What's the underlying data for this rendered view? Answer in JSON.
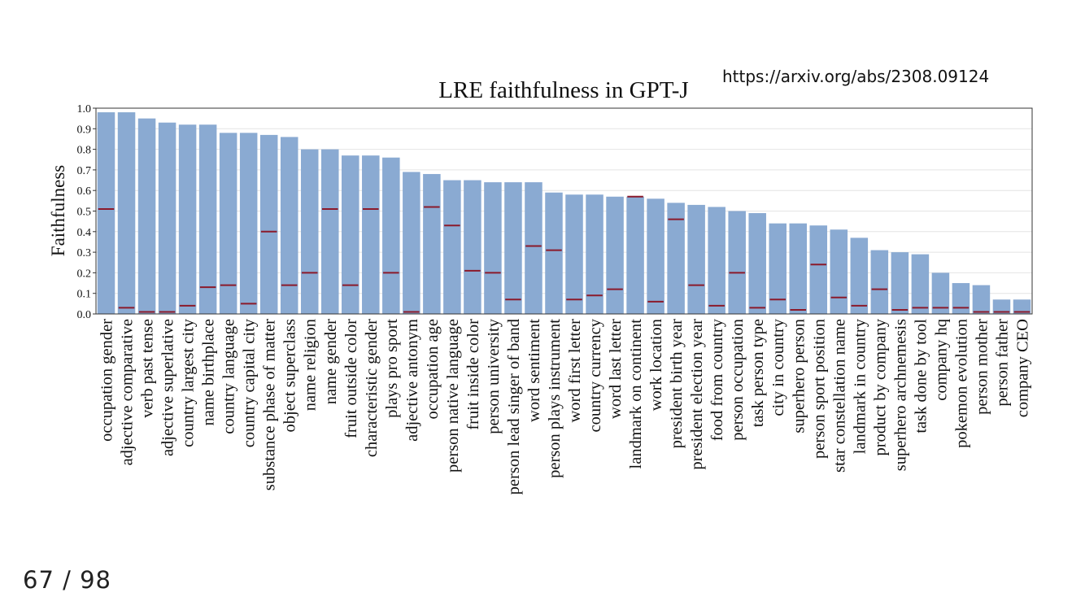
{
  "slide": {
    "source_url": "https://arxiv.org/abs/2308.09124",
    "page_counter": "67 / 98"
  },
  "chart_data": {
    "type": "bar",
    "title": "LRE faithfulness in GPT-J",
    "ylabel": "Faithfulness",
    "xlabel": "",
    "ylim": [
      0,
      1.0
    ],
    "yticks": [
      "0.0",
      "0.1",
      "0.2",
      "0.3",
      "0.4",
      "0.5",
      "0.6",
      "0.7",
      "0.8",
      "0.9",
      "1.0"
    ],
    "grid": true,
    "bar_color": "#8aaad2",
    "baseline_marker_color": "#8b1a2b",
    "categories": [
      "occupation gender",
      "adjective comparative",
      "verb past tense",
      "adjective superlative",
      "country largest city",
      "name birthplace",
      "country language",
      "country capital city",
      "substance phase of matter",
      "object superclass",
      "name religion",
      "name gender",
      "fruit outside color",
      "characteristic gender",
      "plays pro sport",
      "adjective antonym",
      "occupation age",
      "person native language",
      "fruit inside color",
      "person university",
      "person lead singer of band",
      "word sentiment",
      "person plays instrument",
      "word first letter",
      "country currency",
      "word last letter",
      "landmark on continent",
      "work location",
      "president birth year",
      "president election year",
      "food from country",
      "person occupation",
      "task person type",
      "city in country",
      "superhero person",
      "person sport position",
      "star constellation name",
      "landmark in country",
      "product by company",
      "superhero archnemesis",
      "task done by tool",
      "company hq",
      "pokemon evolution",
      "person mother",
      "person father",
      "company CEO"
    ],
    "values": [
      0.98,
      0.98,
      0.95,
      0.93,
      0.92,
      0.92,
      0.88,
      0.88,
      0.87,
      0.86,
      0.8,
      0.8,
      0.77,
      0.77,
      0.76,
      0.69,
      0.68,
      0.65,
      0.65,
      0.64,
      0.64,
      0.64,
      0.59,
      0.58,
      0.58,
      0.57,
      0.57,
      0.56,
      0.54,
      0.53,
      0.52,
      0.5,
      0.49,
      0.44,
      0.44,
      0.43,
      0.41,
      0.37,
      0.31,
      0.3,
      0.29,
      0.2,
      0.15,
      0.14,
      0.07,
      0.07
    ],
    "baseline": [
      0.51,
      0.03,
      0.01,
      0.01,
      0.04,
      0.13,
      0.14,
      0.05,
      0.4,
      0.14,
      0.2,
      0.51,
      0.14,
      0.51,
      0.2,
      0.01,
      0.52,
      0.43,
      0.21,
      0.2,
      0.07,
      0.33,
      0.31,
      0.07,
      0.09,
      0.12,
      0.57,
      0.06,
      0.46,
      0.14,
      0.04,
      0.2,
      0.03,
      0.07,
      0.02,
      0.24,
      0.08,
      0.04,
      0.12,
      0.02,
      0.03,
      0.03,
      0.03,
      0.01,
      0.01,
      0.01
    ]
  }
}
